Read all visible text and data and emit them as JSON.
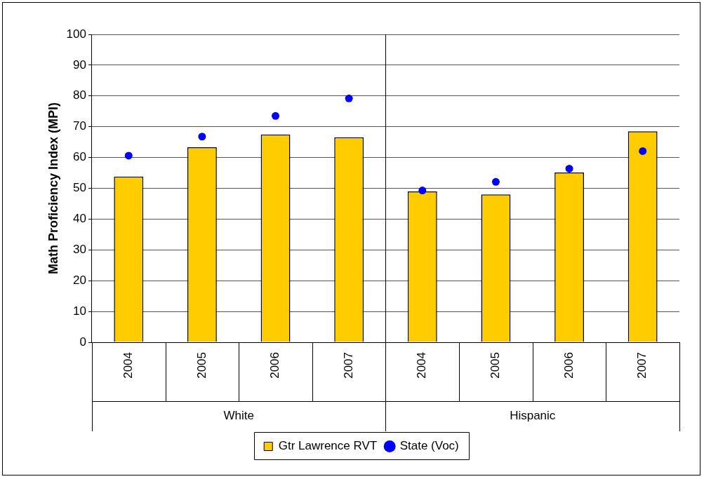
{
  "chart_data": {
    "type": "bar",
    "categories": [
      "2004",
      "2005",
      "2006",
      "2007",
      "2004",
      "2005",
      "2006",
      "2007"
    ],
    "series": [
      {
        "name": "Gtr Lawrence RVT",
        "color": "#ffcc00",
        "values": [
          53.8,
          63.3,
          67.5,
          66.6,
          49.0,
          48.0,
          55.1,
          68.5
        ]
      },
      {
        "name": "State (Voc)",
        "type": "scatter",
        "color": "#0000ff",
        "values": [
          60.6,
          66.8,
          73.5,
          79.2,
          49.3,
          52.1,
          56.4,
          62.1
        ]
      }
    ],
    "ylabel": "Math Proficiency Index (MPI)",
    "annotations": [
      "White",
      "Hispanic"
    ],
    "ylim": [
      0,
      100
    ],
    "yticks": [
      0,
      10,
      20,
      30,
      40,
      50,
      60,
      70,
      80,
      90,
      100
    ],
    "grid": "y",
    "legend": "bottom",
    "marker": "circle"
  }
}
